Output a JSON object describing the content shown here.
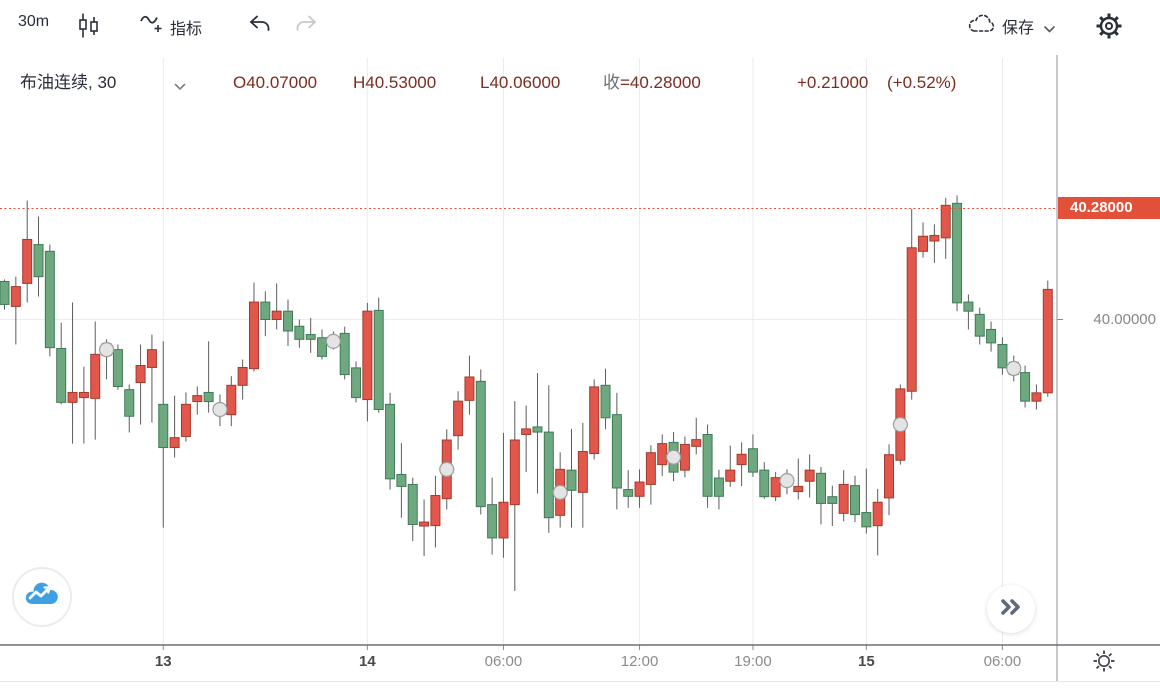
{
  "toolbar": {
    "interval": "30m",
    "indicator_label": "指标",
    "save_label": "保存",
    "icons": [
      "candlestick-style-icon",
      "indicator-icon",
      "undo-icon",
      "redo-icon",
      "cloud-save-icon",
      "chevron-down-icon",
      "gear-icon"
    ]
  },
  "header": {
    "symbol": "布油连续, 30",
    "open": "O40.07000",
    "high": "H40.53000",
    "low": "L40.06000",
    "close_label": "收",
    "close_value": "=40.28000",
    "change": "+0.21000",
    "change_pct": "(+0.52%)",
    "quote_color": "#7c2c20"
  },
  "price_axis": {
    "last_price_label": "40.28000",
    "gridline_label": "40.00000",
    "tag_color": "#e2503a"
  },
  "buttons": {
    "expand_icon": "double-chevron-right-icon",
    "logo_icon": "blue-cloud-chart-logo",
    "sun_icon": "sun-icon"
  },
  "chart_data": {
    "type": "candlestick",
    "title": "布油连续 30m",
    "price_line": 40.28,
    "y_gridlines": [
      40.0
    ],
    "ylim": [
      39.25,
      40.55
    ],
    "grid": true,
    "colors": {
      "up_fill": "#e2574b",
      "up_border": "#a23b2e",
      "down_fill": "#6ea87f",
      "down_border": "#3f7a58",
      "wick": "#5c5c5c",
      "grid": "#ebebeb",
      "price_line": "#e0523b",
      "marker_fill": "#e4e4e4",
      "marker_border": "#9c9c9c"
    },
    "x_axis": {
      "labels": [
        {
          "text": "13",
          "slot": 15,
          "bold": true
        },
        {
          "text": "14",
          "slot": 33,
          "bold": true
        },
        {
          "text": "06:00",
          "slot": 45,
          "bold": false
        },
        {
          "text": "12:00",
          "slot": 57,
          "bold": false
        },
        {
          "text": "19:00",
          "slot": 67,
          "bold": false
        },
        {
          "text": "15",
          "slot": 77,
          "bold": true
        },
        {
          "text": "06:00",
          "slot": 89,
          "bold": false
        }
      ]
    },
    "candles": [
      [
        40.096,
        40.101,
        40.025,
        40.038
      ],
      [
        40.033,
        40.108,
        39.937,
        40.083
      ],
      [
        40.091,
        40.3,
        40.043,
        40.202
      ],
      [
        40.189,
        40.26,
        40.058,
        40.108
      ],
      [
        40.172,
        40.189,
        39.907,
        39.929
      ],
      [
        39.927,
        39.992,
        39.786,
        39.791
      ],
      [
        39.791,
        40.043,
        39.687,
        39.816
      ],
      [
        39.803,
        39.881,
        39.687,
        39.816
      ],
      [
        39.801,
        39.995,
        39.697,
        39.912
      ],
      [
        39.939,
        39.95,
        39.849,
        39.909,
        1
      ],
      [
        39.924,
        39.937,
        39.823,
        39.831
      ],
      [
        39.823,
        39.836,
        39.715,
        39.756
      ],
      [
        39.841,
        39.937,
        39.735,
        39.884
      ],
      [
        39.879,
        39.962,
        39.74,
        39.924
      ],
      [
        39.786,
        39.945,
        39.475,
        39.677
      ],
      [
        39.677,
        39.808,
        39.652,
        39.702
      ],
      [
        39.705,
        39.816,
        39.692,
        39.786
      ],
      [
        39.793,
        39.831,
        39.76,
        39.808
      ],
      [
        39.816,
        39.945,
        39.765,
        39.793
      ],
      [
        39.76,
        39.811,
        39.731,
        39.786,
        1
      ],
      [
        39.76,
        39.857,
        39.731,
        39.834
      ],
      [
        39.834,
        39.899,
        39.798,
        39.879
      ],
      [
        39.876,
        40.093,
        39.869,
        40.044
      ],
      [
        40.044,
        40.071,
        39.958,
        40.0
      ],
      [
        40.0,
        40.091,
        39.975,
        40.021
      ],
      [
        40.021,
        40.05,
        39.933,
        39.971
      ],
      [
        39.983,
        40.0,
        39.929,
        39.95
      ],
      [
        39.962,
        40.004,
        39.916,
        39.95
      ],
      [
        39.954,
        39.975,
        39.899,
        39.907
      ],
      [
        39.934,
        39.97,
        39.924,
        39.956,
        1
      ],
      [
        39.965,
        39.982,
        39.849,
        39.861
      ],
      [
        39.878,
        39.894,
        39.791,
        39.803
      ],
      [
        39.798,
        40.042,
        39.743,
        40.021
      ],
      [
        40.023,
        40.055,
        39.765,
        39.773
      ],
      [
        39.786,
        39.815,
        39.571,
        39.598
      ],
      [
        39.609,
        39.688,
        39.5,
        39.579
      ],
      [
        39.584,
        39.601,
        39.441,
        39.483
      ],
      [
        39.479,
        39.546,
        39.403,
        39.489
      ],
      [
        39.48,
        39.606,
        39.425,
        39.556
      ],
      [
        39.548,
        39.723,
        39.521,
        39.696,
        1
      ],
      [
        39.707,
        39.819,
        39.672,
        39.794
      ],
      [
        39.796,
        39.909,
        39.76,
        39.855
      ],
      [
        39.844,
        39.874,
        39.508,
        39.528
      ],
      [
        39.533,
        39.601,
        39.407,
        39.449
      ],
      [
        39.449,
        39.714,
        39.399,
        39.539
      ],
      [
        39.533,
        39.794,
        39.315,
        39.696
      ],
      [
        39.71,
        39.783,
        39.615,
        39.724
      ],
      [
        39.729,
        39.865,
        39.561,
        39.716
      ],
      [
        39.716,
        39.834,
        39.462,
        39.5
      ],
      [
        39.506,
        39.665,
        39.475,
        39.622,
        1
      ],
      [
        39.62,
        39.724,
        39.475,
        39.569
      ],
      [
        39.564,
        39.739,
        39.475,
        39.667
      ],
      [
        39.662,
        39.849,
        39.647,
        39.83
      ],
      [
        39.834,
        39.876,
        39.723,
        39.752
      ],
      [
        39.76,
        39.815,
        39.521,
        39.575
      ],
      [
        39.571,
        39.62,
        39.525,
        39.554
      ],
      [
        39.554,
        39.622,
        39.525,
        39.59
      ],
      [
        39.584,
        39.683,
        39.533,
        39.664
      ],
      [
        39.634,
        39.71,
        39.605,
        39.687
      ],
      [
        39.69,
        39.716,
        39.592,
        39.615,
        1
      ],
      [
        39.62,
        39.705,
        39.602,
        39.685
      ],
      [
        39.68,
        39.752,
        39.66,
        39.697
      ],
      [
        39.71,
        39.735,
        39.525,
        39.554
      ],
      [
        39.6,
        39.621,
        39.521,
        39.554
      ],
      [
        39.592,
        39.682,
        39.578,
        39.62
      ],
      [
        39.634,
        39.69,
        39.58,
        39.66
      ],
      [
        39.674,
        39.71,
        39.603,
        39.615
      ],
      [
        39.62,
        39.64,
        39.548,
        39.553
      ],
      [
        39.553,
        39.615,
        39.542,
        39.601
      ],
      [
        39.581,
        39.622,
        39.559,
        39.606,
        1
      ],
      [
        39.566,
        39.649,
        39.546,
        39.579
      ],
      [
        39.592,
        39.66,
        39.551,
        39.62
      ],
      [
        39.612,
        39.628,
        39.483,
        39.536
      ],
      [
        39.553,
        39.581,
        39.479,
        39.536
      ],
      [
        39.511,
        39.62,
        39.491,
        39.584
      ],
      [
        39.581,
        39.606,
        39.489,
        39.508
      ],
      [
        39.513,
        39.624,
        39.46,
        39.477
      ],
      [
        39.48,
        39.573,
        39.405,
        39.539
      ],
      [
        39.55,
        39.685,
        39.506,
        39.659
      ],
      [
        39.645,
        39.836,
        39.634,
        39.825,
        1
      ],
      [
        39.819,
        40.279,
        39.798,
        40.181
      ],
      [
        40.172,
        40.245,
        40.156,
        40.21
      ],
      [
        40.198,
        40.24,
        40.143,
        40.212
      ],
      [
        40.206,
        40.307,
        40.153,
        40.288
      ],
      [
        40.293,
        40.313,
        40.021,
        40.042
      ],
      [
        40.044,
        40.063,
        39.975,
        40.021
      ],
      [
        40.013,
        40.03,
        39.937,
        39.958
      ],
      [
        39.975,
        39.995,
        39.919,
        39.941
      ],
      [
        39.937,
        39.955,
        39.861,
        39.878
      ],
      [
        39.892,
        39.909,
        39.844,
        39.861,
        1
      ],
      [
        39.866,
        39.884,
        39.778,
        39.794
      ],
      [
        39.794,
        39.836,
        39.773,
        39.815
      ],
      [
        39.815,
        40.098,
        39.805,
        40.076
      ]
    ]
  }
}
